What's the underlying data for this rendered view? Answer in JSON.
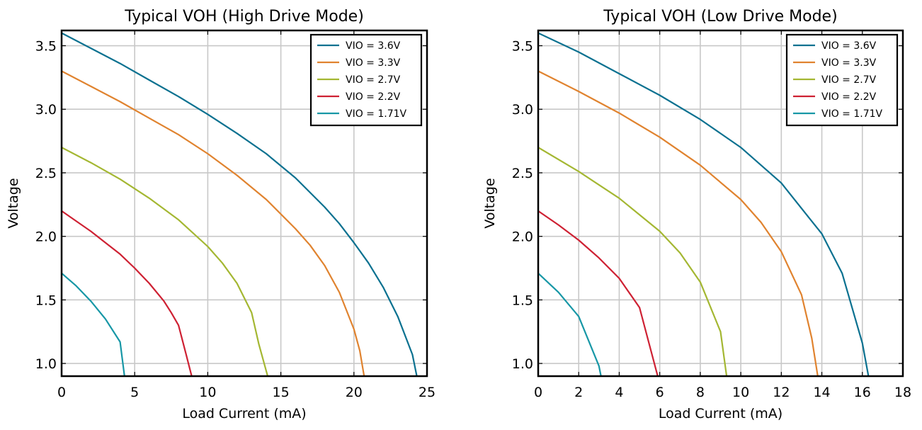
{
  "chart_data": [
    {
      "type": "line",
      "title": "Typical VOH (High Drive Mode)",
      "xlabel": "Load Current (mA)",
      "ylabel": "Voltage",
      "xlim": [
        0,
        25
      ],
      "ylim": [
        0.9,
        3.62
      ],
      "xticks": [
        0,
        5,
        10,
        15,
        20,
        25
      ],
      "xtick_labels": [
        "0",
        "5",
        "10",
        "15",
        "20",
        "25"
      ],
      "yticks": [
        1.0,
        1.5,
        2.0,
        2.5,
        3.0,
        3.5
      ],
      "ytick_labels": [
        "1.0",
        "1.5",
        "2.0",
        "2.5",
        "3.0",
        "3.5"
      ],
      "grid": true,
      "legend_position": "top-right",
      "series": [
        {
          "name": "VIO = 3.6V",
          "color": "#0b7190",
          "x": [
            0,
            2,
            4,
            6,
            8,
            10,
            12,
            14,
            16,
            18,
            19,
            20,
            21,
            22,
            23,
            24,
            24.3
          ],
          "y": [
            3.6,
            3.48,
            3.36,
            3.23,
            3.1,
            2.96,
            2.81,
            2.65,
            2.46,
            2.23,
            2.1,
            1.95,
            1.79,
            1.6,
            1.37,
            1.07,
            0.9
          ]
        },
        {
          "name": "VIO = 3.3V",
          "color": "#e0832f",
          "x": [
            0,
            2,
            4,
            6,
            8,
            10,
            12,
            14,
            16,
            17,
            18,
            19,
            20,
            20.4,
            20.7
          ],
          "y": [
            3.3,
            3.18,
            3.06,
            2.93,
            2.8,
            2.65,
            2.48,
            2.29,
            2.06,
            1.93,
            1.77,
            1.56,
            1.27,
            1.1,
            0.9
          ]
        },
        {
          "name": "VIO = 2.7V",
          "color": "#a4b732",
          "x": [
            0,
            2,
            4,
            6,
            8,
            10,
            11,
            12,
            13,
            13.5,
            14.1
          ],
          "y": [
            2.7,
            2.58,
            2.45,
            2.3,
            2.13,
            1.92,
            1.79,
            1.63,
            1.4,
            1.15,
            0.9
          ]
        },
        {
          "name": "VIO = 2.2V",
          "color": "#ce2133",
          "x": [
            0,
            1,
            2,
            3,
            4,
            5,
            6,
            7,
            7.5,
            8,
            8.5,
            8.9
          ],
          "y": [
            2.2,
            2.12,
            2.04,
            1.95,
            1.86,
            1.75,
            1.63,
            1.49,
            1.4,
            1.3,
            1.08,
            0.9
          ]
        },
        {
          "name": "VIO = 1.71V",
          "color": "#1797a6",
          "x": [
            0,
            1,
            2,
            3,
            4,
            4.3
          ],
          "y": [
            1.71,
            1.61,
            1.49,
            1.35,
            1.17,
            0.9
          ]
        }
      ]
    },
    {
      "type": "line",
      "title": "Typical VOH (Low Drive Mode)",
      "xlabel": "Load Current (mA)",
      "ylabel": "Voltage",
      "xlim": [
        0,
        18
      ],
      "ylim": [
        0.9,
        3.62
      ],
      "xticks": [
        0,
        2,
        4,
        6,
        8,
        10,
        12,
        14,
        16,
        18
      ],
      "xtick_labels": [
        "0",
        "2",
        "4",
        "6",
        "8",
        "10",
        "12",
        "14",
        "16",
        "18"
      ],
      "yticks": [
        1.0,
        1.5,
        2.0,
        2.5,
        3.0,
        3.5
      ],
      "ytick_labels": [
        "1.0",
        "1.5",
        "2.0",
        "2.5",
        "3.0",
        "3.5"
      ],
      "grid": true,
      "legend_position": "top-right",
      "series": [
        {
          "name": "VIO = 3.6V",
          "color": "#0b7190",
          "x": [
            0,
            2,
            4,
            6,
            8,
            10,
            11,
            12,
            13,
            14,
            15,
            16,
            16.3
          ],
          "y": [
            3.6,
            3.45,
            3.28,
            3.11,
            2.92,
            2.7,
            2.56,
            2.42,
            2.22,
            2.02,
            1.71,
            1.16,
            0.9
          ]
        },
        {
          "name": "VIO = 3.3V",
          "color": "#e0832f",
          "x": [
            0,
            2,
            4,
            6,
            8,
            10,
            11,
            12,
            13,
            13.5,
            13.8
          ],
          "y": [
            3.3,
            3.14,
            2.97,
            2.78,
            2.56,
            2.29,
            2.11,
            1.88,
            1.54,
            1.2,
            0.9
          ]
        },
        {
          "name": "VIO = 2.7V",
          "color": "#a4b732",
          "x": [
            0,
            2,
            4,
            6,
            7,
            8,
            9,
            9.3
          ],
          "y": [
            2.7,
            2.51,
            2.3,
            2.04,
            1.87,
            1.64,
            1.25,
            0.9
          ]
        },
        {
          "name": "VIO = 2.2V",
          "color": "#ce2133",
          "x": [
            0,
            1,
            2,
            3,
            4,
            5,
            5.9
          ],
          "y": [
            2.2,
            2.09,
            1.97,
            1.83,
            1.67,
            1.44,
            0.9
          ]
        },
        {
          "name": "VIO = 1.71V",
          "color": "#1797a6",
          "x": [
            0,
            1,
            2,
            3,
            3.1
          ],
          "y": [
            1.71,
            1.56,
            1.37,
            0.98,
            0.9
          ]
        }
      ]
    }
  ]
}
